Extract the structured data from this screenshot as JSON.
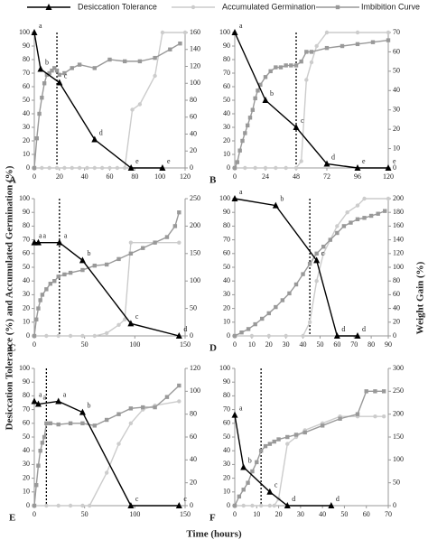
{
  "legend": [
    {
      "name": "Desiccation Tolerance",
      "color": "#000000",
      "marker": "triangle"
    },
    {
      "name": "Accumulated Germination",
      "color": "#cccccc",
      "marker": "circle"
    },
    {
      "name": "Imbibition Curve",
      "color": "#999999",
      "marker": "square"
    }
  ],
  "xlabel": "Time (hours)",
  "ylabel": "Desiccation Tolerance (%) and Accumulated Germination (%)",
  "y2label": "Weight Gain (%)",
  "chart_data": [
    {
      "type": "line",
      "panel": "A",
      "xlim": [
        0,
        120
      ],
      "xticks": [
        0,
        20,
        40,
        60,
        80,
        100,
        120
      ],
      "ylim": [
        0,
        100
      ],
      "yticks": [
        0,
        10,
        20,
        30,
        40,
        50,
        60,
        70,
        80,
        90,
        100
      ],
      "y2lim": [
        0,
        160
      ],
      "y2ticks": [
        0,
        20,
        40,
        60,
        80,
        100,
        120,
        140,
        160
      ],
      "divider_x": 18,
      "series": [
        {
          "x": [
            0,
            5,
            20,
            48,
            77,
            102
          ],
          "values": [
            100,
            73,
            63,
            21,
            0,
            0
          ],
          "letters": [
            "a",
            "b",
            "c",
            "d",
            "e",
            "e"
          ]
        },
        {
          "x": [
            0,
            6,
            12,
            18,
            24,
            30,
            36,
            42,
            48,
            54,
            60,
            66,
            72,
            78,
            84,
            96,
            102,
            120
          ],
          "values": [
            0,
            0,
            0,
            0,
            0,
            0,
            0,
            0,
            0,
            0,
            0,
            0,
            0,
            43,
            47,
            68,
            100,
            100
          ]
        },
        {
          "axis": "y2",
          "x": [
            0,
            2,
            4,
            6,
            8,
            10,
            12,
            14,
            16,
            18,
            20,
            24,
            30,
            36,
            48,
            60,
            72,
            84,
            96,
            108,
            116
          ],
          "values": [
            0,
            35,
            64,
            83,
            100,
            110,
            112,
            115,
            118,
            115,
            110,
            112,
            118,
            122,
            118,
            128,
            126,
            126,
            130,
            140,
            147
          ]
        }
      ]
    },
    {
      "type": "line",
      "panel": "B",
      "xlim": [
        0,
        120
      ],
      "xticks": [
        0,
        24,
        48,
        72,
        96,
        120
      ],
      "ylim": [
        0,
        100
      ],
      "yticks": [
        0,
        10,
        20,
        30,
        40,
        50,
        60,
        70,
        80,
        90,
        100
      ],
      "y2lim": [
        0,
        70
      ],
      "y2ticks": [
        0,
        10,
        20,
        30,
        40,
        50,
        60,
        70
      ],
      "divider_x": 48,
      "series": [
        {
          "x": [
            0,
            24,
            48,
            72,
            96,
            120
          ],
          "values": [
            100,
            50,
            30,
            3,
            0,
            0
          ],
          "letters": [
            "a",
            "b",
            "c",
            "d",
            "e",
            "e"
          ]
        },
        {
          "x": [
            0,
            8,
            16,
            24,
            32,
            40,
            48,
            52,
            56,
            60,
            64,
            72,
            96,
            120
          ],
          "values": [
            0,
            0,
            0,
            0,
            0,
            0,
            0,
            5,
            65,
            78,
            90,
            100,
            100,
            100
          ]
        },
        {
          "axis": "y2",
          "x": [
            0,
            2,
            4,
            6,
            8,
            10,
            12,
            14,
            16,
            18,
            20,
            24,
            28,
            32,
            36,
            40,
            44,
            48,
            52,
            56,
            60,
            72,
            84,
            96,
            108,
            120
          ],
          "values": [
            0,
            3,
            9,
            14,
            18,
            22,
            26,
            30,
            36,
            40,
            43,
            47,
            50,
            52,
            52,
            53,
            53,
            53,
            55,
            60,
            60,
            62,
            63,
            64,
            65,
            66
          ]
        }
      ]
    },
    {
      "type": "line",
      "panel": "C",
      "xlim": [
        0,
        150
      ],
      "xticks": [
        0,
        50,
        100,
        150
      ],
      "ylim": [
        0,
        100
      ],
      "yticks": [
        0,
        10,
        20,
        30,
        40,
        50,
        60,
        70,
        80,
        90,
        100
      ],
      "y2lim": [
        0,
        250
      ],
      "y2ticks": [
        0,
        50,
        100,
        150,
        200,
        250
      ],
      "divider_x": 25,
      "series": [
        {
          "x": [
            0,
            4,
            25,
            48,
            96,
            144
          ],
          "values": [
            68,
            68,
            68,
            55,
            9,
            0
          ],
          "letters": [
            "a",
            "a",
            "a",
            "b",
            "c",
            "d"
          ]
        },
        {
          "x": [
            0,
            12,
            24,
            36,
            48,
            60,
            72,
            84,
            90,
            96,
            120,
            144
          ],
          "values": [
            0,
            0,
            0,
            0,
            0,
            0,
            2,
            8,
            12,
            68,
            68,
            68
          ]
        },
        {
          "axis": "y2",
          "x": [
            0,
            2,
            4,
            6,
            8,
            12,
            16,
            20,
            24,
            30,
            36,
            48,
            60,
            72,
            84,
            96,
            108,
            120,
            132,
            140,
            144
          ],
          "values": [
            0,
            30,
            50,
            65,
            75,
            85,
            95,
            100,
            108,
            112,
            115,
            120,
            128,
            130,
            140,
            150,
            160,
            170,
            180,
            200,
            225
          ]
        }
      ]
    },
    {
      "type": "line",
      "panel": "D",
      "xlim": [
        0,
        90
      ],
      "xticks": [
        0,
        10,
        20,
        30,
        40,
        50,
        60,
        70,
        80,
        90
      ],
      "ylim": [
        0,
        100
      ],
      "yticks": [
        0,
        10,
        20,
        30,
        40,
        50,
        60,
        70,
        80,
        90,
        100
      ],
      "y2lim": [
        0,
        200
      ],
      "y2ticks": [
        0,
        20,
        40,
        60,
        80,
        100,
        120,
        140,
        160,
        180,
        200
      ],
      "divider_x": 44,
      "series": [
        {
          "x": [
            0,
            24,
            48,
            60,
            72
          ],
          "values": [
            100,
            95,
            55,
            0,
            0
          ],
          "letters": [
            "a",
            "b",
            "c",
            "d",
            "d"
          ]
        },
        {
          "x": [
            0,
            10,
            20,
            30,
            40,
            44,
            48,
            52,
            56,
            60,
            66,
            72,
            76,
            90
          ],
          "values": [
            0,
            0,
            0,
            0,
            0,
            10,
            40,
            60,
            70,
            80,
            90,
            95,
            100,
            100
          ]
        },
        {
          "axis": "y2",
          "x": [
            0,
            4,
            8,
            12,
            16,
            20,
            24,
            28,
            32,
            36,
            40,
            44,
            48,
            52,
            56,
            60,
            64,
            68,
            72,
            76,
            80,
            84,
            88
          ],
          "values": [
            0,
            5,
            10,
            17,
            25,
            33,
            42,
            52,
            62,
            75,
            90,
            105,
            120,
            130,
            140,
            150,
            160,
            165,
            170,
            172,
            175,
            178,
            182
          ]
        }
      ]
    },
    {
      "type": "line",
      "panel": "E",
      "xlim": [
        0,
        150
      ],
      "xticks": [
        0,
        50,
        100,
        150
      ],
      "ylim": [
        0,
        100
      ],
      "yticks": [
        0,
        10,
        20,
        30,
        40,
        50,
        60,
        70,
        80,
        90,
        100
      ],
      "y2lim": [
        0,
        120
      ],
      "y2ticks": [
        0,
        20,
        40,
        60,
        80,
        100,
        120
      ],
      "divider_x": 12,
      "series": [
        {
          "x": [
            0,
            4,
            24,
            48,
            96,
            144
          ],
          "values": [
            76,
            74,
            76,
            68,
            0,
            0
          ],
          "letters": [
            "a",
            "a",
            "a",
            "b",
            "c",
            "c"
          ]
        },
        {
          "x": [
            0,
            12,
            24,
            36,
            48,
            55,
            72,
            84,
            96,
            108,
            120,
            144
          ],
          "values": [
            0,
            0,
            0,
            0,
            0,
            0,
            24,
            45,
            60,
            70,
            73,
            76
          ]
        },
        {
          "axis": "y2",
          "x": [
            0,
            2,
            4,
            6,
            8,
            10,
            12,
            16,
            24,
            36,
            48,
            60,
            72,
            84,
            96,
            108,
            120,
            132,
            144
          ],
          "values": [
            0,
            18,
            35,
            48,
            55,
            60,
            72,
            72,
            71,
            72,
            72,
            70,
            75,
            80,
            85,
            86,
            86,
            95,
            105
          ]
        }
      ]
    },
    {
      "type": "line",
      "panel": "F",
      "xlim": [
        0,
        70
      ],
      "xticks": [
        0,
        10,
        20,
        30,
        40,
        50,
        60,
        70
      ],
      "ylim": [
        0,
        100
      ],
      "yticks": [
        0,
        10,
        20,
        30,
        40,
        50,
        60,
        70,
        80,
        90,
        100
      ],
      "y2lim": [
        0,
        300
      ],
      "y2ticks": [
        0,
        50,
        100,
        150,
        200,
        250,
        300
      ],
      "divider_x": 12,
      "series": [
        {
          "x": [
            0,
            4,
            16,
            24,
            44
          ],
          "values": [
            66,
            28,
            10,
            0,
            0
          ],
          "letters": [
            "a",
            "b",
            "c",
            "d",
            "d"
          ]
        },
        {
          "x": [
            0,
            4,
            8,
            12,
            16,
            18,
            20,
            24,
            28,
            32,
            40,
            48,
            56,
            64,
            68
          ],
          "values": [
            0,
            0,
            0,
            0,
            0,
            0,
            5,
            45,
            50,
            55,
            60,
            65,
            65,
            65,
            65
          ]
        },
        {
          "axis": "y2",
          "x": [
            0,
            2,
            4,
            6,
            8,
            10,
            12,
            14,
            16,
            18,
            20,
            24,
            28,
            32,
            40,
            48,
            56,
            60,
            64,
            68
          ],
          "values": [
            0,
            20,
            35,
            50,
            75,
            95,
            120,
            130,
            135,
            140,
            145,
            150,
            155,
            160,
            175,
            190,
            200,
            250,
            250,
            250
          ]
        }
      ]
    }
  ]
}
